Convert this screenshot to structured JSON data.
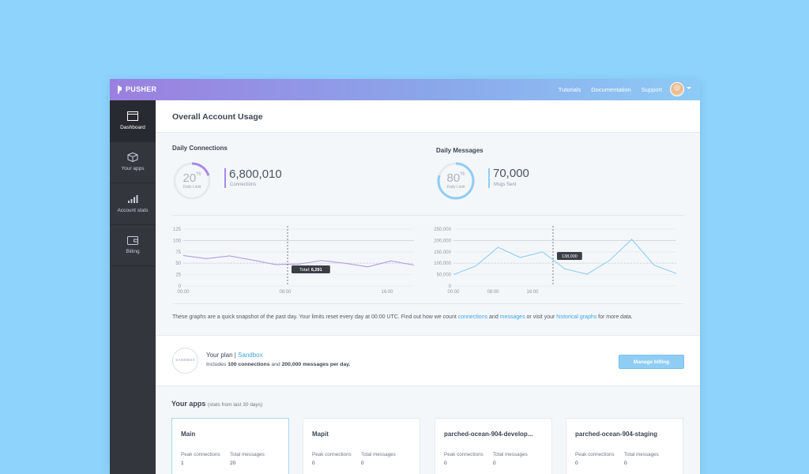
{
  "topbar": {
    "logo_text": "PUSHER",
    "nav": [
      "Tutorials",
      "Documentation",
      "Support"
    ]
  },
  "sidebar": {
    "items": [
      {
        "label": "Dashboard",
        "icon": "window-icon",
        "active": true
      },
      {
        "label": "Your apps",
        "icon": "apps-cube-icon",
        "active": false
      },
      {
        "label": "Account stats",
        "icon": "bar-chart-icon",
        "active": false
      },
      {
        "label": "Billing",
        "icon": "wallet-icon",
        "active": false
      }
    ]
  },
  "page": {
    "title": "Overall Account Usage"
  },
  "connections": {
    "title": "Daily Connections",
    "percent": "20",
    "percent_value": 20,
    "percent_symbol": "%",
    "gauge_label": "Daily Limit",
    "value": "6,800,010",
    "value_label": "Connections",
    "color": "#a98be6"
  },
  "messages": {
    "title": "Daily Messages",
    "percent": "80",
    "percent_value": 80,
    "percent_symbol": "%",
    "gauge_label": "Daily Limit",
    "value": "70,000",
    "value_label": "Msgs Sent",
    "color": "#8fcdf5"
  },
  "chart_data": [
    {
      "type": "line",
      "name": "connections-chart",
      "x_ticks": [
        "00:00",
        "08:00",
        "16:00"
      ],
      "y_ticks": [
        "125",
        "100",
        "75",
        "50",
        "25",
        "0"
      ],
      "ylim": [
        0,
        125
      ],
      "values": [
        67,
        60,
        66,
        57,
        47,
        48,
        56,
        50,
        42,
        55,
        46
      ],
      "tooltip": {
        "label": "Total:",
        "value": "6,291"
      },
      "color": "#b39be6"
    },
    {
      "type": "line",
      "name": "messages-chart",
      "x_ticks": [
        "00:00",
        "08:00",
        "16:00"
      ],
      "y_ticks": [
        "250,000",
        "200,000",
        "150,000",
        "100,000",
        "50,000",
        "0"
      ],
      "ylim": [
        0,
        250000
      ],
      "values": [
        50000,
        88000,
        170000,
        125000,
        150000,
        75000,
        52000,
        112000,
        205000,
        92000,
        55000
      ],
      "tooltip": {
        "value": "138,000"
      },
      "color": "#8fcdf5"
    }
  ],
  "note": {
    "text1": "These graphs are a quick snapshot of the past day. Your limits reset every day at 00:00 UTC. Find out how we count ",
    "link1": "connections",
    "text2": " and ",
    "link2": "messages",
    "text3": " or visit your ",
    "link3": "historical graphs",
    "text4": " for more data."
  },
  "plan": {
    "badge": "SANDBOX",
    "label": "Your plan |",
    "name": "Sandbox",
    "desc1": "Includes ",
    "connections": "100 connections",
    "desc2": " and ",
    "messages": "200,000 messages per day.",
    "button": "Manage billing"
  },
  "apps": {
    "title": "Your apps",
    "subtitle": "(stats from last 30 days)",
    "peak_label": "Peak connections",
    "total_label": "Total messages",
    "items": [
      {
        "name": "Main",
        "peak": "1",
        "total": "20"
      },
      {
        "name": "Mapit",
        "peak": "0",
        "total": "0"
      },
      {
        "name": "parched-ocean-904-develop...",
        "peak": "0",
        "total": "0"
      },
      {
        "name": "parched-ocean-904-staging",
        "peak": "0",
        "total": "0"
      }
    ]
  }
}
